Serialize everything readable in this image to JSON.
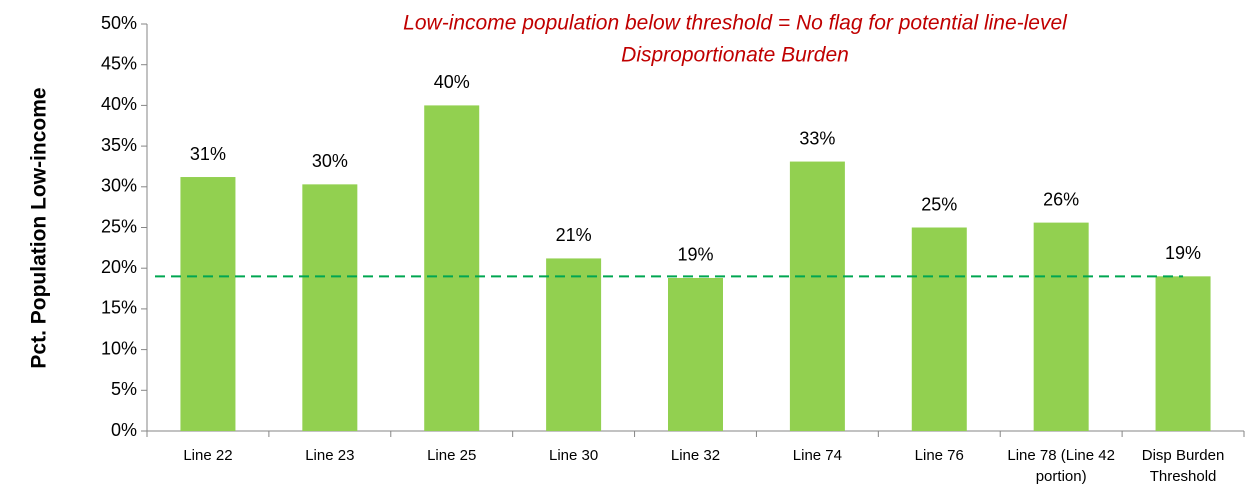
{
  "chart_data": {
    "type": "bar",
    "annotation": [
      "Low-income population below threshold = No flag for potential line-level",
      "Disproportionate Burden"
    ],
    "annotation_color": "#c00000",
    "ylabel": "Pct. Population Low-income",
    "categories": [
      "Line 22",
      "Line 23",
      "Line 25",
      "Line 30",
      "Line 32",
      "Line 74",
      "Line 76",
      "Line 78 (Line 42 portion)",
      "Disp Burden Threshold"
    ],
    "values": [
      31.2,
      30.3,
      40,
      21.2,
      18.8,
      33.1,
      25,
      25.6,
      19
    ],
    "value_labels": [
      "31%",
      "30%",
      "40%",
      "21%",
      "19%",
      "33%",
      "25%",
      "26%",
      "19%"
    ],
    "color": "#92d050",
    "ylim": [
      0,
      50
    ],
    "yticks": [
      {
        "value": 0,
        "label": "0%"
      },
      {
        "value": 5,
        "label": "5%"
      },
      {
        "value": 10,
        "label": "10%"
      },
      {
        "value": 15,
        "label": "15%"
      },
      {
        "value": 20,
        "label": "20%"
      },
      {
        "value": 25,
        "label": "25%"
      },
      {
        "value": 30,
        "label": "30%"
      },
      {
        "value": 35,
        "label": "35%"
      },
      {
        "value": 40,
        "label": "40%"
      },
      {
        "value": 45,
        "label": "45%"
      },
      {
        "value": 50,
        "label": "50%"
      }
    ],
    "reference_line": {
      "value": 19,
      "color": "#00a651",
      "style": "dashed"
    },
    "grid": false
  }
}
